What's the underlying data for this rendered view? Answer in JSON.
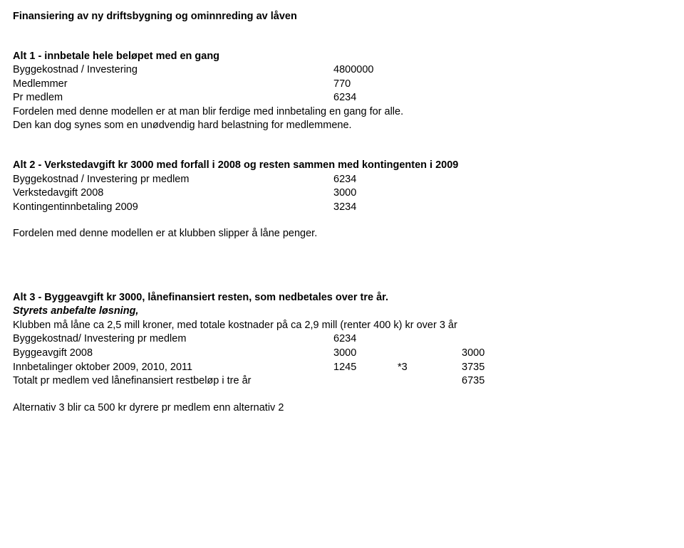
{
  "colors": {
    "text": "#000000",
    "background": "#ffffff"
  },
  "typography": {
    "font_family": "Arial",
    "base_size_pt": 11
  },
  "title": "Finansiering av ny driftsbygning og ominnreding av låven",
  "alt1": {
    "heading": "Alt 1 - innbetale hele beløpet med en gang",
    "rows": [
      {
        "label": "Byggekostnad / Investering",
        "value": "4800000"
      },
      {
        "label": "Medlemmer",
        "value": "770"
      },
      {
        "label": "Pr medlem",
        "value": "6234"
      }
    ],
    "note1": "Fordelen med denne modellen er at man blir ferdige med innbetaling en gang for alle.",
    "note2": "Den kan dog synes som en unødvendig hard belastning for medlemmene."
  },
  "alt2": {
    "heading": "Alt 2 - Verkstedavgift kr 3000 med forfall i 2008 og resten sammen med kontingenten i 2009",
    "rows": [
      {
        "label": "Byggekostnad / Investering pr medlem",
        "value": "6234"
      },
      {
        "label": "Verkstedavgift 2008",
        "value": "3000"
      },
      {
        "label": "Kontingentinnbetaling 2009",
        "value": "3234"
      }
    ],
    "note": "Fordelen med denne modellen er at klubben slipper å låne penger."
  },
  "alt3": {
    "heading": "Alt 3 - Byggeavgift kr 3000, lånefinansiert resten, som nedbetales over tre år.",
    "subheading": "Styrets anbefalte løsning,",
    "intro": "Klubben må låne ca 2,5 mill kroner, med totale kostnader på ca 2,9 mill (renter 400 k) kr over 3 år",
    "rows": [
      {
        "label": "Byggekostnad/ Investering pr medlem",
        "v1": "6234",
        "v2": "",
        "v3": ""
      },
      {
        "label": "Byggeavgift 2008",
        "v1": "3000",
        "v2": "",
        "v3": "3000"
      },
      {
        "label": "Innbetalinger oktober 2009, 2010, 2011",
        "v1": "1245",
        "v2": "*3",
        "v3": "3735"
      },
      {
        "label": "Totalt pr medlem ved lånefinansiert restbeløp i tre år",
        "v1": "",
        "v2": "",
        "v3": "6735"
      }
    ],
    "footer": "Alternativ 3 blir ca 500 kr dyrere pr medlem enn alternativ 2"
  }
}
